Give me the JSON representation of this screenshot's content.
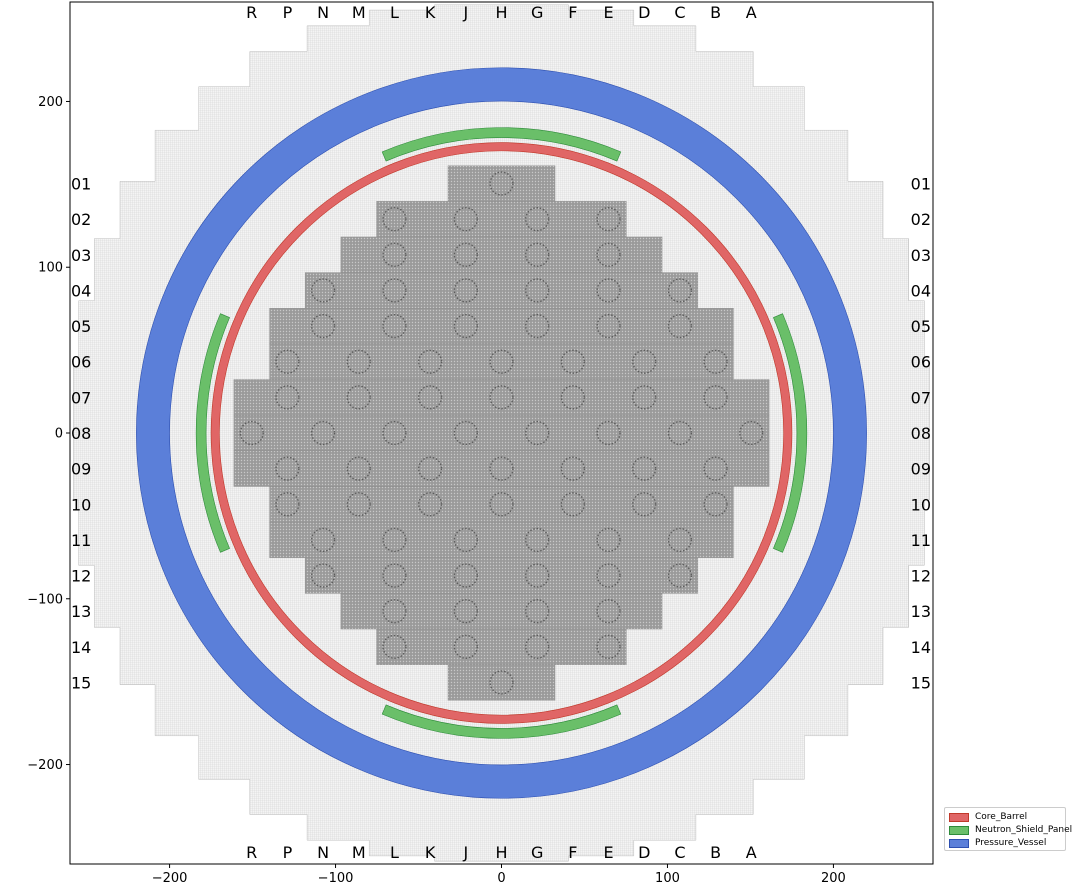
{
  "chart_data": {
    "type": "diagram",
    "xlim": [
      -260,
      260
    ],
    "ylim": [
      -260,
      260
    ],
    "x_ticks": [
      {
        "value": -200,
        "label": "−200"
      },
      {
        "value": -100,
        "label": "−100"
      },
      {
        "value": 0,
        "label": "0"
      },
      {
        "value": 100,
        "label": "100"
      },
      {
        "value": 200,
        "label": "200"
      }
    ],
    "y_ticks": [
      {
        "value": 200,
        "label": "200"
      },
      {
        "value": 100,
        "label": "100"
      },
      {
        "value": 0,
        "label": "0"
      },
      {
        "value": -100,
        "label": "−100"
      },
      {
        "value": -200,
        "label": "−200"
      }
    ],
    "column_labels": [
      "R",
      "P",
      "N",
      "M",
      "L",
      "K",
      "J",
      "H",
      "G",
      "F",
      "E",
      "D",
      "C",
      "B",
      "A"
    ],
    "row_labels": [
      "01",
      "02",
      "03",
      "04",
      "05",
      "06",
      "07",
      "08",
      "09",
      "10",
      "11",
      "12",
      "13",
      "14",
      "15"
    ],
    "core_rows": [
      {
        "row": "01",
        "cols": 3
      },
      {
        "row": "02",
        "cols": 7
      },
      {
        "row": "03",
        "cols": 9
      },
      {
        "row": "04",
        "cols": 11
      },
      {
        "row": "05",
        "cols": 13
      },
      {
        "row": "06",
        "cols": 13
      },
      {
        "row": "07",
        "cols": 15
      },
      {
        "row": "08",
        "cols": 15
      },
      {
        "row": "09",
        "cols": 15
      },
      {
        "row": "10",
        "cols": 13
      },
      {
        "row": "11",
        "cols": 13
      },
      {
        "row": "12",
        "cols": 11
      },
      {
        "row": "13",
        "cols": 9
      },
      {
        "row": "14",
        "cols": 7
      },
      {
        "row": "15",
        "cols": 3
      }
    ],
    "assembly_pitch": 21.5,
    "regions": [
      {
        "name": "Core_Barrel",
        "shape": "annulus",
        "inner_radius": 170,
        "outer_radius": 175,
        "color": "#e06666"
      },
      {
        "name": "Neutron_Shield_Panel",
        "shape": "annular_arcs",
        "inner_radius": 178,
        "outer_radius": 184,
        "arcs_deg": [
          [
            67,
            113
          ],
          [
            157,
            203
          ],
          [
            247,
            293
          ],
          [
            -23,
            23
          ]
        ],
        "color": "#6abf69"
      },
      {
        "name": "Pressure_Vessel",
        "shape": "annulus",
        "inner_radius": 200,
        "outer_radius": 220,
        "color": "#5b7fd9"
      }
    ],
    "legend": [
      {
        "label": "Core_Barrel",
        "color": "#e06666",
        "border": "#c0392b"
      },
      {
        "label": "Neutron_Shield_Panel",
        "color": "#6abf69",
        "border": "#2e8b3a"
      },
      {
        "label": "Pressure_Vessel",
        "color": "#5b7fd9",
        "border": "#2d4fb0"
      }
    ],
    "legend_position": "lower-right"
  }
}
